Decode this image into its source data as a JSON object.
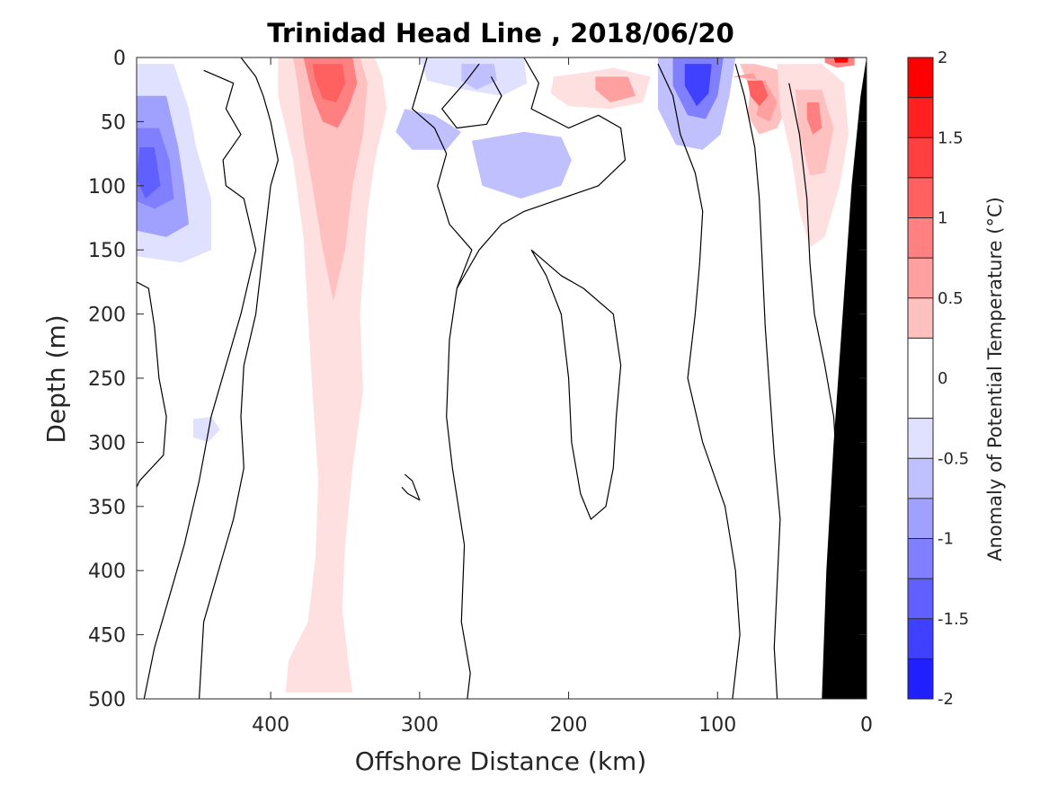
{
  "chart_data": {
    "type": "heatmap",
    "title": "Trinidad Head Line , 2018/06/20",
    "xlabel": "Offshore Distance (km)",
    "ylabel": "Depth (m)",
    "colorbar_label": "Anomaly of Potential Temperature (°C)",
    "x_reversed": true,
    "y_reversed": true,
    "xlim": [
      490,
      0
    ],
    "ylim": [
      0,
      500
    ],
    "x_ticks": [
      400,
      300,
      200,
      100,
      0
    ],
    "y_ticks": [
      0,
      50,
      100,
      150,
      200,
      250,
      300,
      350,
      400,
      450,
      500
    ],
    "clim": [
      -2,
      2
    ],
    "colorbar_ticks": [
      2,
      1.5,
      1,
      0.5,
      0,
      -0.5,
      -1,
      -1.5,
      -2
    ],
    "contour_levels": [
      -2,
      -1.75,
      -1.5,
      -1.25,
      -1,
      -0.75,
      -0.5,
      -0.25,
      0.25,
      0.5,
      0.75,
      1,
      1.25,
      1.5,
      1.75,
      2
    ],
    "level_colors": [
      "#0000ff",
      "#2020ff",
      "#4040ff",
      "#6060ff",
      "#8080ff",
      "#a0a0ff",
      "#c0c0ff",
      "#e0e0ff",
      "#ffffff",
      "#ffe0e0",
      "#ffc0c0",
      "#ffa0a0",
      "#ff8080",
      "#ff6060",
      "#ff4040",
      "#ff2020",
      "#ff0000"
    ],
    "zero_contour_color": "#000000",
    "bathymetry_color": "#000000",
    "features": [
      {
        "sign": "warm",
        "x_center": 360,
        "depth_top": 0,
        "depth_bottom": 495,
        "peak_anomaly": 1.2,
        "peak_depth": 25
      },
      {
        "sign": "cold",
        "x_center": 465,
        "depth_top": 5,
        "depth_bottom": 160,
        "peak_anomaly": -1.3,
        "peak_depth": 90
      },
      {
        "sign": "cold",
        "x_center": 110,
        "depth_top": 0,
        "depth_bottom": 70,
        "peak_anomaly": -1.4,
        "peak_depth": 20
      },
      {
        "sign": "warm",
        "x_center": 70,
        "depth_top": 5,
        "depth_bottom": 60,
        "peak_anomaly": 1.3,
        "peak_depth": 28
      },
      {
        "sign": "warm",
        "x_center": 35,
        "depth_top": 0,
        "depth_bottom": 150,
        "peak_anomaly": 0.9,
        "peak_depth": 45
      },
      {
        "sign": "warm",
        "x_center": 15,
        "depth_top": 0,
        "depth_bottom": 8,
        "peak_anomaly": 1.9,
        "peak_depth": 2
      },
      {
        "sign": "warm",
        "x_center": 170,
        "depth_top": 10,
        "depth_bottom": 40,
        "peak_anomaly": 0.7,
        "peak_depth": 25
      },
      {
        "sign": "cold",
        "x_center": 260,
        "depth_top": 0,
        "depth_bottom": 30,
        "peak_anomaly": -0.6,
        "peak_depth": 15
      },
      {
        "sign": "cold",
        "x_center": 225,
        "depth_top": 60,
        "depth_bottom": 110,
        "peak_anomaly": -0.4,
        "peak_depth": 85
      },
      {
        "sign": "cold",
        "x_center": 290,
        "depth_top": 40,
        "depth_bottom": 75,
        "peak_anomaly": -0.4,
        "peak_depth": 55
      },
      {
        "sign": "cold",
        "x_center": 440,
        "depth_top": 280,
        "depth_bottom": 300,
        "peak_anomaly": -0.3,
        "peak_depth": 290
      }
    ]
  }
}
